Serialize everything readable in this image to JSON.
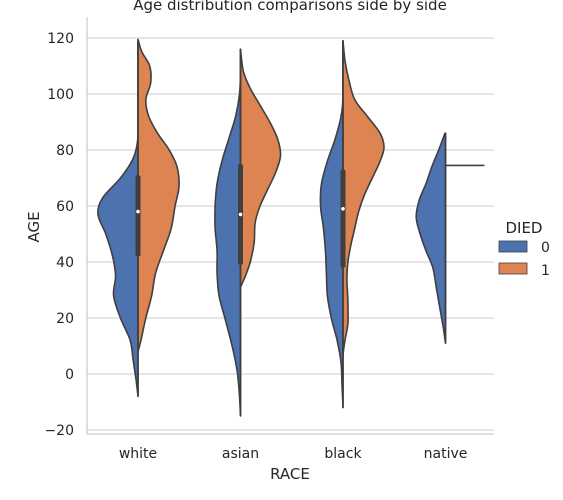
{
  "chart_data": {
    "type": "violin",
    "title": "Age distribution comparisons side by side",
    "xlabel": "RACE",
    "ylabel": "AGE",
    "categories": [
      "white",
      "asian",
      "black",
      "native"
    ],
    "yticks": [
      -20,
      0,
      20,
      40,
      60,
      80,
      100,
      120
    ],
    "ylim": [
      -22,
      127
    ],
    "grid": "horizontal",
    "legend": {
      "title": "DIED",
      "placement": "right",
      "entries": [
        {
          "label": "0",
          "color": "#4c72b0"
        },
        {
          "label": "1",
          "color": "#dd8452"
        }
      ]
    },
    "colors": {
      "0": "#4c72b0",
      "1": "#dd8452",
      "outline": "#3f3f3f",
      "grid": "#cccccc"
    },
    "split": true,
    "violins": [
      {
        "category": "white",
        "left": {
          "group": "0",
          "profile": [
            [
              -8,
              0
            ],
            [
              -2,
              0.02
            ],
            [
              5,
              0.05
            ],
            [
              12,
              0.08
            ],
            [
              20,
              0.18
            ],
            [
              28,
              0.25
            ],
            [
              35,
              0.23
            ],
            [
              42,
              0.26
            ],
            [
              50,
              0.33
            ],
            [
              57,
              0.41
            ],
            [
              63,
              0.36
            ],
            [
              70,
              0.18
            ],
            [
              77,
              0.05
            ],
            [
              85,
              0
            ],
            [
              100,
              0
            ],
            [
              119,
              0
            ]
          ]
        },
        "right": {
          "group": "1",
          "profile": [
            [
              8,
              0
            ],
            [
              12,
              0.03
            ],
            [
              20,
              0.08
            ],
            [
              28,
              0.14
            ],
            [
              36,
              0.18
            ],
            [
              44,
              0.26
            ],
            [
              52,
              0.34
            ],
            [
              60,
              0.38
            ],
            [
              67,
              0.42
            ],
            [
              74,
              0.4
            ],
            [
              80,
              0.32
            ],
            [
              86,
              0.2
            ],
            [
              92,
              0.11
            ],
            [
              98,
              0.08
            ],
            [
              104,
              0.13
            ],
            [
              110,
              0.12
            ],
            [
              115,
              0.04
            ],
            [
              119.5,
              0
            ]
          ]
        },
        "quartiles": [
          42,
          71
        ],
        "median": 58,
        "whisker": [
          -8,
          119
        ]
      },
      {
        "category": "asian",
        "left": {
          "group": "0",
          "profile": [
            [
              -15,
              0
            ],
            [
              -8,
              0.01
            ],
            [
              0,
              0.03
            ],
            [
              6,
              0.06
            ],
            [
              12,
              0.1
            ],
            [
              20,
              0.16
            ],
            [
              28,
              0.22
            ],
            [
              36,
              0.24
            ],
            [
              44,
              0.24
            ],
            [
              52,
              0.26
            ],
            [
              60,
              0.26
            ],
            [
              68,
              0.24
            ],
            [
              76,
              0.19
            ],
            [
              84,
              0.12
            ],
            [
              92,
              0.05
            ],
            [
              100,
              0.01
            ],
            [
              108,
              0
            ],
            [
              116,
              0
            ]
          ]
        },
        "right": {
          "group": "1",
          "profile": [
            [
              31,
              0
            ],
            [
              35,
              0.05
            ],
            [
              40,
              0.1
            ],
            [
              47,
              0.14
            ],
            [
              54,
              0.15
            ],
            [
              60,
              0.2
            ],
            [
              66,
              0.28
            ],
            [
              72,
              0.36
            ],
            [
              78,
              0.41
            ],
            [
              84,
              0.38
            ],
            [
              90,
              0.3
            ],
            [
              96,
              0.2
            ],
            [
              102,
              0.1
            ],
            [
              108,
              0.03
            ],
            [
              116,
              0
            ]
          ]
        },
        "quartiles": [
          39,
          75
        ],
        "median": 57,
        "whisker": [
          -15,
          116
        ]
      },
      {
        "category": "black",
        "left": {
          "group": "0",
          "profile": [
            [
              -12,
              0
            ],
            [
              -4,
              0.01
            ],
            [
              4,
              0.02
            ],
            [
              12,
              0.06
            ],
            [
              20,
              0.12
            ],
            [
              28,
              0.16
            ],
            [
              36,
              0.17
            ],
            [
              44,
              0.18
            ],
            [
              52,
              0.2
            ],
            [
              60,
              0.23
            ],
            [
              68,
              0.22
            ],
            [
              76,
              0.16
            ],
            [
              84,
              0.08
            ],
            [
              92,
              0.02
            ],
            [
              100,
              0
            ],
            [
              119,
              0
            ]
          ]
        },
        "right": {
          "group": "1",
          "profile": [
            [
              7,
              0
            ],
            [
              12,
              0.02
            ],
            [
              18,
              0.05
            ],
            [
              26,
              0.05
            ],
            [
              34,
              0.04
            ],
            [
              40,
              0.05
            ],
            [
              46,
              0.08
            ],
            [
              52,
              0.12
            ],
            [
              58,
              0.16
            ],
            [
              64,
              0.22
            ],
            [
              70,
              0.3
            ],
            [
              76,
              0.38
            ],
            [
              81,
              0.42
            ],
            [
              86,
              0.38
            ],
            [
              92,
              0.25
            ],
            [
              98,
              0.12
            ],
            [
              105,
              0.06
            ],
            [
              112,
              0.02
            ],
            [
              119,
              0
            ]
          ]
        },
        "quartiles": [
          38,
          73
        ],
        "median": 59,
        "whisker": [
          -12,
          119
        ]
      },
      {
        "category": "native",
        "left": {
          "group": "0",
          "profile": [
            [
              11,
              0
            ],
            [
              16,
              0.02
            ],
            [
              22,
              0.05
            ],
            [
              30,
              0.09
            ],
            [
              38,
              0.13
            ],
            [
              44,
              0.2
            ],
            [
              50,
              0.26
            ],
            [
              56,
              0.3
            ],
            [
              62,
              0.27
            ],
            [
              68,
              0.2
            ],
            [
              74,
              0.14
            ],
            [
              80,
              0.07
            ],
            [
              86,
              0.005
            ]
          ]
        },
        "right": {
          "group": "1",
          "profile": [
            [
              74.5,
              0.4
            ]
          ],
          "single_value": 74.5
        },
        "quartiles": null,
        "median": null,
        "whisker": [
          11,
          86
        ]
      }
    ]
  }
}
